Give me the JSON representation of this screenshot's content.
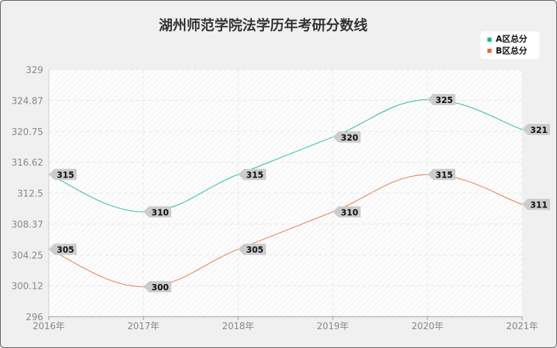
{
  "chart_data": {
    "type": "line",
    "title": "湖州师范学院法学历年考研分数线",
    "categories": [
      "2016年",
      "2017年",
      "2018年",
      "2019年",
      "2020年",
      "2021年"
    ],
    "series": [
      {
        "name": "A区总分",
        "values": [
          315,
          310,
          315,
          320,
          325,
          321
        ],
        "color": "#1abc8c"
      },
      {
        "name": "B区总分",
        "values": [
          305,
          300,
          305,
          310,
          315,
          311
        ],
        "color": "#e8703a"
      }
    ],
    "ylim": [
      296,
      329
    ],
    "yticks": [
      "296",
      "300.12",
      "304.25",
      "308.37",
      "312.5",
      "316.62",
      "320.75",
      "324.87",
      "329"
    ],
    "grid": true,
    "legend": "top-right",
    "smooth": true
  }
}
